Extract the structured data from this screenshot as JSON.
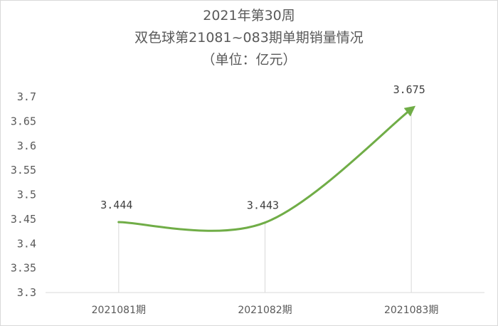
{
  "chart_data": {
    "type": "line",
    "title_lines": [
      "2021年第30周",
      "双色球第21081~083期单期销量情况",
      "（单位：亿元）"
    ],
    "categories": [
      "2021081期",
      "2021082期",
      "2021083期"
    ],
    "series": [
      {
        "values": [
          3.444,
          3.443,
          3.675
        ]
      }
    ],
    "data_labels": [
      "3.444",
      "3.443",
      "3.675"
    ],
    "y_ticks": [
      "3.3",
      "3.35",
      "3.4",
      "3.45",
      "3.5",
      "3.55",
      "3.6",
      "3.65",
      "3.7"
    ],
    "ylim": [
      3.3,
      3.7
    ],
    "smooth": true,
    "arrow_end": true,
    "drop_lines": true,
    "grid": false,
    "colors": {
      "line": "#70ad47",
      "axis": "#d9d9d9",
      "text": "#595959"
    }
  }
}
